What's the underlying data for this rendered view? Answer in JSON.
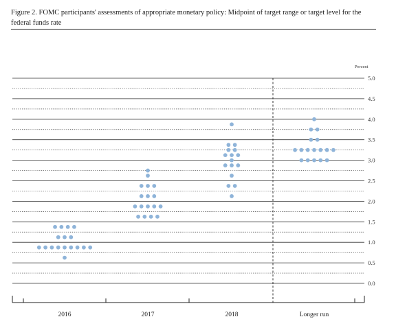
{
  "figure": {
    "title": "Figure 2. FOMC participants' assessments of appropriate monetary policy: Midpoint of target range or target level for the federal funds rate"
  },
  "chart_data": {
    "type": "scatter",
    "subtype": "dot-plot",
    "ylabel": "Percent",
    "ylim": [
      0,
      5.0
    ],
    "yticks": [
      "5.0",
      "4.5",
      "4.0",
      "3.5",
      "3.0",
      "2.5",
      "2.0",
      "1.5",
      "1.0",
      "0.5",
      "0.0"
    ],
    "categories": [
      "2016",
      "2017",
      "2018",
      "Longer run"
    ],
    "series": [
      {
        "category": "2016",
        "points": [
          {
            "y": 1.375,
            "count": 4
          },
          {
            "y": 1.125,
            "count": 3
          },
          {
            "y": 0.875,
            "count": 9
          },
          {
            "y": 0.625,
            "count": 1
          }
        ]
      },
      {
        "category": "2017",
        "points": [
          {
            "y": 2.75,
            "count": 1
          },
          {
            "y": 2.625,
            "count": 1
          },
          {
            "y": 2.375,
            "count": 3
          },
          {
            "y": 2.125,
            "count": 3
          },
          {
            "y": 1.875,
            "count": 5
          },
          {
            "y": 1.625,
            "count": 4
          }
        ]
      },
      {
        "category": "2018",
        "points": [
          {
            "y": 3.875,
            "count": 1
          },
          {
            "y": 3.375,
            "count": 2
          },
          {
            "y": 3.25,
            "count": 2
          },
          {
            "y": 3.125,
            "count": 3
          },
          {
            "y": 3.0,
            "count": 1
          },
          {
            "y": 2.875,
            "count": 3
          },
          {
            "y": 2.625,
            "count": 1
          },
          {
            "y": 2.375,
            "count": 2
          },
          {
            "y": 2.125,
            "count": 1
          }
        ]
      },
      {
        "category": "Longer run",
        "points": [
          {
            "y": 4.0,
            "count": 1
          },
          {
            "y": 3.75,
            "count": 2
          },
          {
            "y": 3.5,
            "count": 2
          },
          {
            "y": 3.25,
            "count": 7
          },
          {
            "y": 3.0,
            "count": 5
          }
        ]
      }
    ],
    "colors": {
      "dot": "#8fb4d9",
      "grid": "#333333"
    },
    "grid": true,
    "separator_before": "Longer run"
  }
}
